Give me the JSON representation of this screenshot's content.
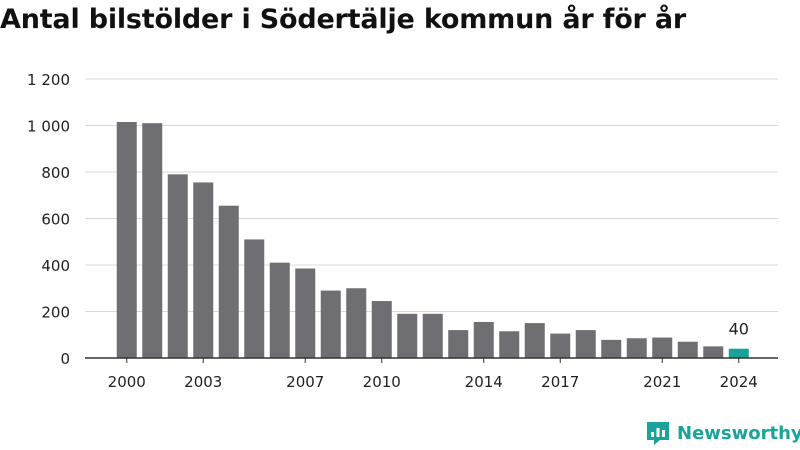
{
  "title": "Antal bilstölder i Södertälje kommun år för år",
  "brand": {
    "name": "Newsworthy",
    "color": "#1aa39a"
  },
  "colors": {
    "bar": "#6e6e73",
    "highlight": "#17a39a",
    "grid": "#d8d8d8",
    "axis": "#333333",
    "text": "#222222"
  },
  "chart_data": {
    "type": "bar",
    "title": "Antal bilstölder i Södertälje kommun år för år",
    "xlabel": "",
    "ylabel": "",
    "categories": [
      "2000",
      "2001",
      "2002",
      "2003",
      "2004",
      "2005",
      "2006",
      "2007",
      "2008",
      "2009",
      "2010",
      "2011",
      "2012",
      "2013",
      "2014",
      "2015",
      "2016",
      "2017",
      "2018",
      "2019",
      "2020",
      "2021",
      "2022",
      "2023",
      "2024"
    ],
    "values": [
      1015,
      1010,
      790,
      755,
      655,
      510,
      410,
      385,
      290,
      300,
      245,
      190,
      190,
      120,
      155,
      115,
      150,
      105,
      120,
      78,
      85,
      88,
      70,
      50,
      40
    ],
    "ylim": [
      0,
      1200
    ],
    "yticks": [
      0,
      200,
      400,
      600,
      800,
      1000,
      1200
    ],
    "ytick_labels": [
      "0",
      "200",
      "400",
      "600",
      "800",
      "1 000",
      "1 200"
    ],
    "xtick_labels": [
      "2000",
      "2003",
      "2007",
      "2010",
      "2014",
      "2017",
      "2021",
      "2024"
    ],
    "highlight_index": 24,
    "highlight_label": "40",
    "grid": true
  }
}
